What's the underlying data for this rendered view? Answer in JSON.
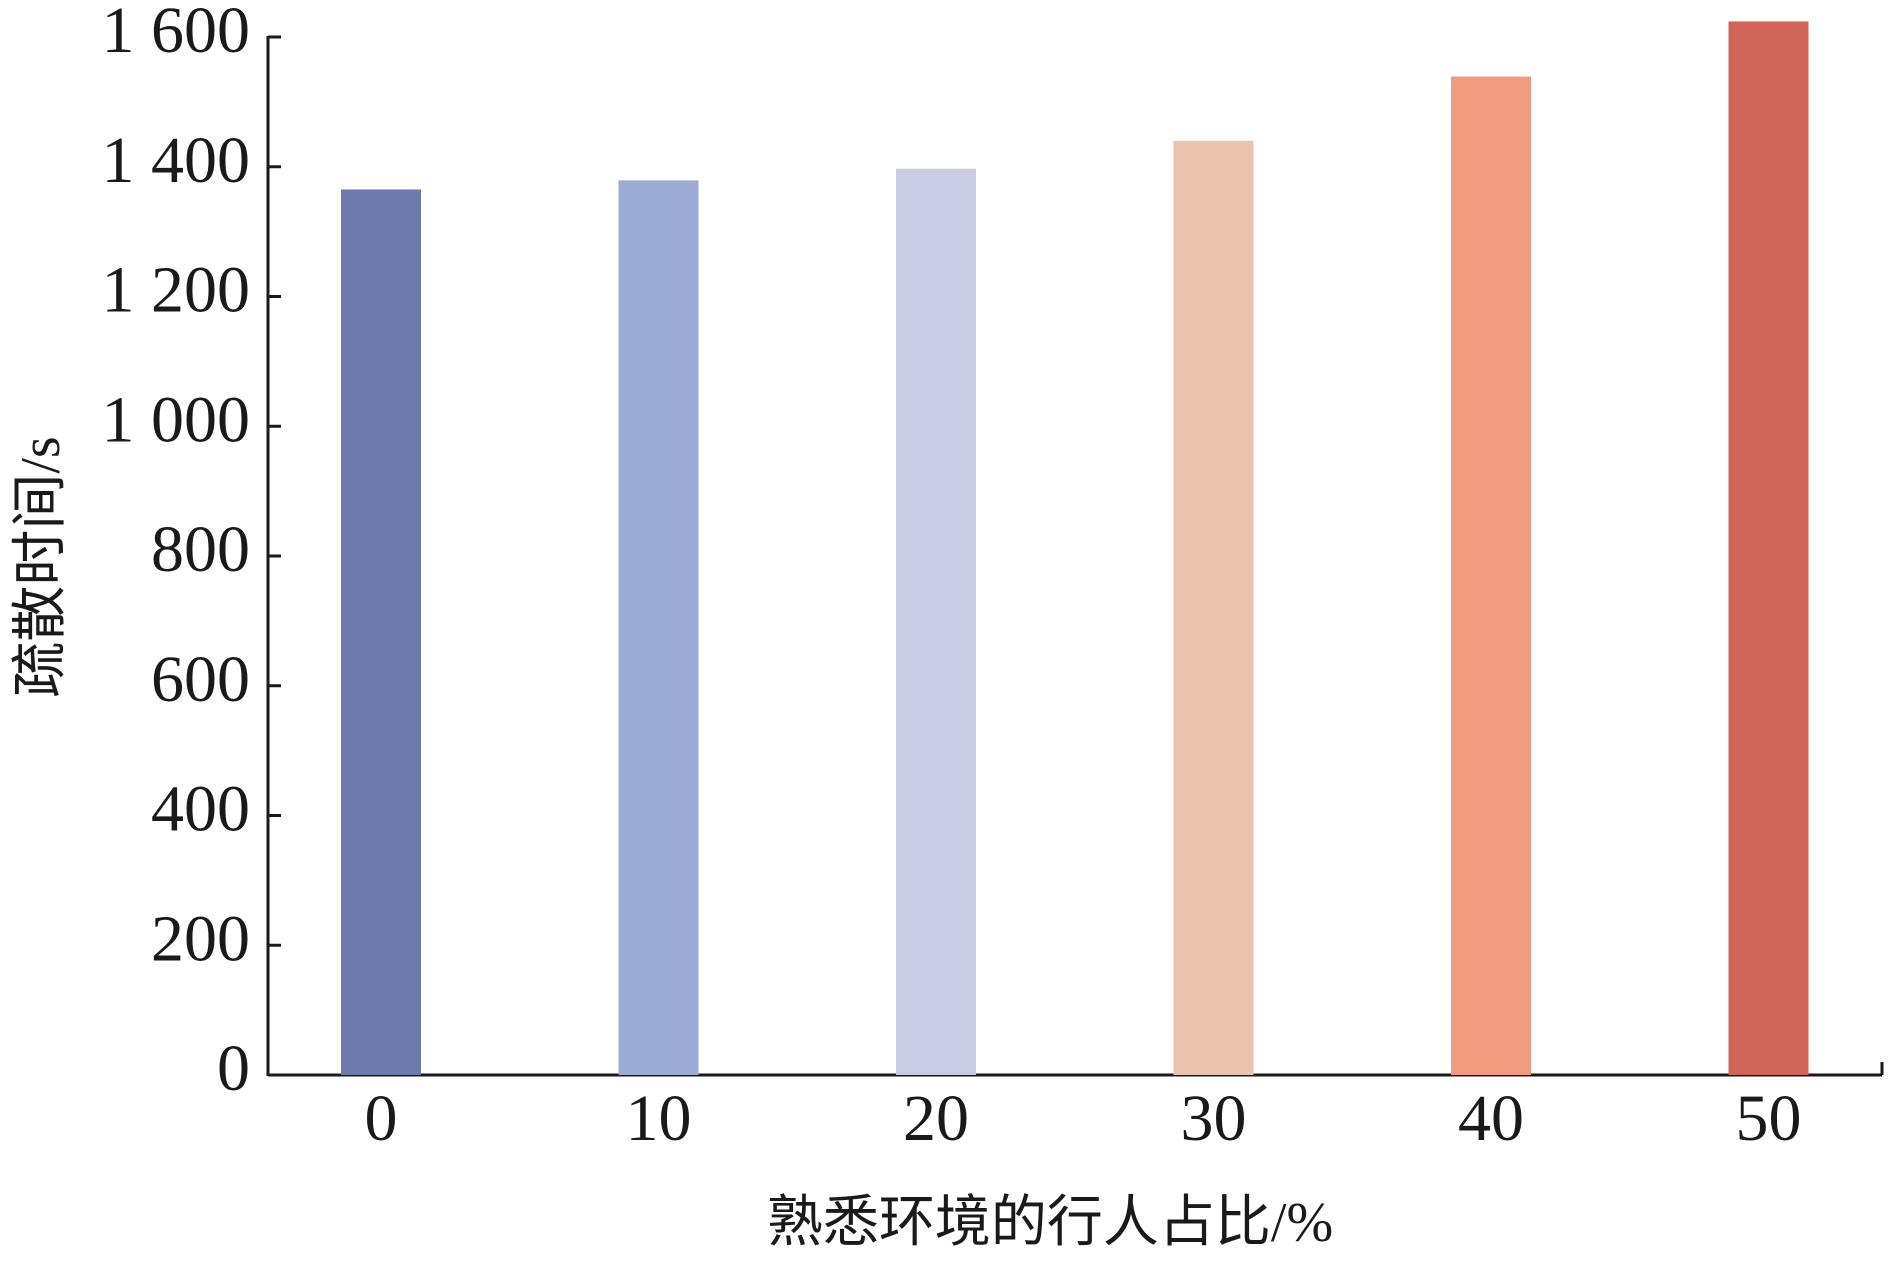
{
  "chart_data": {
    "type": "bar",
    "x_label": "熟悉环境的行人占比/%",
    "y_label": "疏散时间/s",
    "categories": [
      "0",
      "10",
      "20",
      "30",
      "40",
      "50"
    ],
    "values": [
      1365,
      1379,
      1397,
      1440,
      1539,
      1624
    ],
    "colors": [
      "#6e7aad",
      "#9cabd3",
      "#c8cce5",
      "#e9c5b1",
      "#f09a7e",
      "#d06457"
    ],
    "ylim": [
      0,
      1600
    ],
    "yticks": [
      0,
      200,
      400,
      600,
      800,
      {
        "value": 1000,
        "label": "1 000"
      },
      {
        "value": 1200,
        "label": "1 200"
      },
      {
        "value": 1400,
        "label": "1 400"
      },
      {
        "value": 1600,
        "label": "1 600"
      }
    ],
    "grid": false
  }
}
